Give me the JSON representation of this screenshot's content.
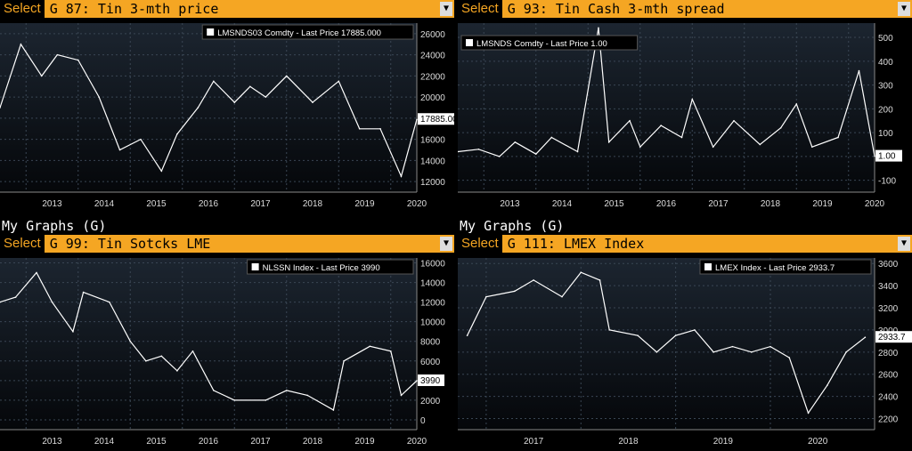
{
  "panels": [
    {
      "select_label": "Select",
      "title": "G 87: Tin 3-mth price",
      "my_graphs": "",
      "legend": "LMSNDS03 Comdty - Last Price 17885.000",
      "last_label": "17885.000"
    },
    {
      "select_label": "Select",
      "title": "G 93: Tin Cash 3-mth spread",
      "my_graphs": "",
      "legend": "LMSNDS Comdty - Last Price 1.00",
      "last_label": "1.00"
    },
    {
      "select_label": "Select",
      "title": "G 99: Tin Sotcks LME",
      "my_graphs": "My Graphs (G)",
      "legend": "NLSSN Index - Last Price 3990",
      "last_label": "3990"
    },
    {
      "select_label": "Select",
      "title": "G 111: LMEX Index",
      "my_graphs": "My Graphs (G)",
      "legend": "LMEX Index - Last Price 2933.7",
      "last_label": "2933.7"
    }
  ],
  "colors": {
    "accent": "#f5a623",
    "line": "#ffffff",
    "grid": "#3a4654",
    "bg": "#000000"
  },
  "chart_data": [
    {
      "type": "line",
      "title": "G 87: Tin 3-mth price",
      "series": [
        {
          "name": "LMSNDS03 Comdty",
          "values": [
            19000,
            25000,
            22000,
            24000,
            23500,
            20000,
            15000,
            16000,
            13000,
            16500,
            19000,
            21500,
            19500,
            21000,
            20000,
            22000,
            19500,
            21500,
            17000,
            17000,
            12500,
            17885
          ]
        }
      ],
      "x": [
        2012.5,
        2012.9,
        2013.3,
        2013.6,
        2014.0,
        2014.4,
        2014.8,
        2015.2,
        2015.6,
        2015.9,
        2016.3,
        2016.6,
        2017.0,
        2017.3,
        2017.6,
        2018.0,
        2018.5,
        2019.0,
        2019.4,
        2019.8,
        2020.2,
        2020.5
      ],
      "xticks": [
        "2013",
        "2014",
        "2015",
        "2016",
        "2017",
        "2018",
        "2019",
        "2020"
      ],
      "yticks": [
        "12000",
        "14000",
        "16000",
        "18000",
        "20000",
        "22000",
        "24000",
        "26000"
      ],
      "ylim": [
        11000,
        27000
      ],
      "xlim": [
        2012.5,
        2020.5
      ]
    },
    {
      "type": "line",
      "title": "G 93: Tin Cash 3-mth spread",
      "series": [
        {
          "name": "LMSNDS Comdty",
          "values": [
            20,
            30,
            0,
            60,
            10,
            80,
            20,
            540,
            60,
            150,
            40,
            130,
            80,
            240,
            40,
            150,
            50,
            120,
            220,
            40,
            80,
            360,
            1
          ]
        }
      ],
      "x": [
        2012.5,
        2012.9,
        2013.3,
        2013.6,
        2014.0,
        2014.3,
        2014.8,
        2015.2,
        2015.4,
        2015.8,
        2016.0,
        2016.4,
        2016.8,
        2017.0,
        2017.4,
        2017.8,
        2018.3,
        2018.7,
        2019.0,
        2019.3,
        2019.8,
        2020.2,
        2020.5
      ],
      "xticks": [
        "2013",
        "2014",
        "2015",
        "2016",
        "2017",
        "2018",
        "2019",
        "2020"
      ],
      "yticks": [
        "-100",
        "0",
        "100",
        "200",
        "300",
        "400",
        "500"
      ],
      "ylim": [
        -150,
        560
      ],
      "xlim": [
        2012.5,
        2020.5
      ]
    },
    {
      "type": "line",
      "title": "G 99: Tin Sotcks LME",
      "series": [
        {
          "name": "NLSSN Index",
          "values": [
            12000,
            12500,
            15000,
            12000,
            9000,
            13000,
            12000,
            8000,
            6000,
            6500,
            5000,
            7000,
            3000,
            2000,
            2000,
            3000,
            2500,
            1000,
            6000,
            7500,
            7000,
            2500,
            3990
          ]
        }
      ],
      "x": [
        2012.5,
        2012.8,
        2013.2,
        2013.5,
        2013.9,
        2014.1,
        2014.6,
        2015.0,
        2015.3,
        2015.6,
        2015.9,
        2016.2,
        2016.6,
        2017.0,
        2017.6,
        2018.0,
        2018.4,
        2018.9,
        2019.1,
        2019.6,
        2020.0,
        2020.2,
        2020.5
      ],
      "xticks": [
        "2013",
        "2014",
        "2015",
        "2016",
        "2017",
        "2018",
        "2019",
        "2020"
      ],
      "yticks": [
        "0",
        "2000",
        "4000",
        "6000",
        "8000",
        "10000",
        "12000",
        "14000",
        "16000"
      ],
      "ylim": [
        -1000,
        16500
      ],
      "xlim": [
        2012.5,
        2020.5
      ]
    },
    {
      "type": "line",
      "title": "G 111: LMEX Index",
      "series": [
        {
          "name": "LMEX Index",
          "values": [
            2950,
            3300,
            3350,
            3450,
            3300,
            3520,
            3450,
            3000,
            2950,
            2800,
            2950,
            3000,
            2800,
            2850,
            2800,
            2850,
            2750,
            2250,
            2500,
            2800,
            2933.7
          ]
        }
      ],
      "x": [
        2016.8,
        2017.0,
        2017.3,
        2017.5,
        2017.8,
        2018.0,
        2018.2,
        2018.3,
        2018.6,
        2018.8,
        2019.0,
        2019.2,
        2019.4,
        2019.6,
        2019.8,
        2020.0,
        2020.2,
        2020.4,
        2020.6,
        2020.8,
        2021.0
      ],
      "xticks": [
        "2017",
        "2018",
        "2019",
        "2020"
      ],
      "yticks": [
        "2200",
        "2400",
        "2600",
        "2800",
        "3000",
        "3200",
        "3400",
        "3600"
      ],
      "ylim": [
        2100,
        3650
      ],
      "xlim": [
        2016.7,
        2021.1
      ]
    }
  ]
}
